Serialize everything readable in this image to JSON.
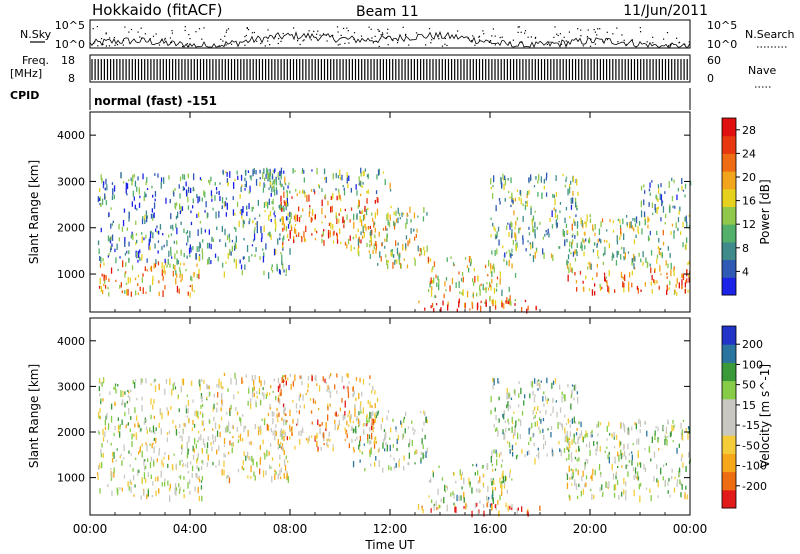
{
  "header": {
    "site": "Hokkaido (fitACF)",
    "beam": "Beam 11",
    "date": "11/Jun/2011"
  },
  "colors": {
    "power_scale": [
      "#1b23e6",
      "#2e59b4",
      "#3f8a8a",
      "#52b06a",
      "#8fc84a",
      "#e6d21e",
      "#f2a51a",
      "#ef6b14",
      "#e8380f",
      "#e01010"
    ],
    "velocity_scale": [
      "#e21a1a",
      "#ee6d12",
      "#f6a81a",
      "#f4cc3a",
      "#c8c8c0",
      "#c8c8c0",
      "#86cc47",
      "#3a9a3a",
      "#2a74a0",
      "#2233c8"
    ]
  },
  "chart_data": [
    {
      "type": "line",
      "panel": "noise",
      "left_label": "N.Sky",
      "right_label": "N.Search",
      "left_ticks": [
        "10^5",
        "10^0"
      ],
      "right_ticks": [
        "10^5",
        "10^0"
      ]
    },
    {
      "type": "bar",
      "panel": "frequency",
      "left_label_line1": "Freq.",
      "left_label_line2": "[MHz]",
      "left_ticks": [
        "18",
        "8"
      ],
      "right_ticks": [
        "60",
        "0"
      ],
      "right_label": "Nave",
      "ylim": [
        8,
        18
      ]
    },
    {
      "type": "table",
      "panel": "cpid",
      "label": "CPID",
      "value": "normal (fast) -151"
    },
    {
      "type": "heatmap",
      "panel": "power",
      "ylabel": "Slant Range [km]",
      "yticks": [
        "4000",
        "3000",
        "2000",
        "1000"
      ],
      "ytick_values": [
        4000,
        3000,
        2000,
        1000
      ],
      "ylim": [
        180,
        4500
      ],
      "xlim": [
        0,
        24
      ],
      "colorbar_label": "Power [dB]",
      "colorbar_ticks": [
        "28",
        "24",
        "20",
        "16",
        "12",
        "8",
        "4"
      ],
      "colorbar_values": [
        28,
        24,
        20,
        16,
        12,
        8,
        4
      ],
      "colorbar_range": [
        0,
        30
      ],
      "scatter_regions": [
        {
          "t": [
            0.2,
            4.5
          ],
          "r": [
            600,
            1300
          ],
          "level": 0.65
        },
        {
          "t": [
            0.3,
            5.0
          ],
          "r": [
            1300,
            3200
          ],
          "level": 0.25
        },
        {
          "t": [
            5.0,
            8.0
          ],
          "r": [
            1000,
            3300
          ],
          "level": 0.3
        },
        {
          "t": [
            7.5,
            11.5
          ],
          "r": [
            1600,
            2800
          ],
          "level": 0.7
        },
        {
          "t": [
            6.0,
            12.0
          ],
          "r": [
            2800,
            3300
          ],
          "level": 0.35
        },
        {
          "t": [
            10.5,
            13.5
          ],
          "r": [
            1200,
            2500
          ],
          "level": 0.5
        },
        {
          "t": [
            13.5,
            17.0
          ],
          "r": [
            400,
            1400
          ],
          "level": 0.55
        },
        {
          "t": [
            13.0,
            18.0
          ],
          "r": [
            250,
            450
          ],
          "level": 0.9
        },
        {
          "t": [
            16.0,
            19.5
          ],
          "r": [
            1400,
            3200
          ],
          "level": 0.35
        },
        {
          "t": [
            19.0,
            24.0
          ],
          "r": [
            600,
            1200
          ],
          "level": 0.75
        },
        {
          "t": [
            19.0,
            24.0
          ],
          "r": [
            1200,
            2300
          ],
          "level": 0.45
        },
        {
          "t": [
            22.0,
            24.0
          ],
          "r": [
            2300,
            3100
          ],
          "level": 0.3
        }
      ]
    },
    {
      "type": "heatmap",
      "panel": "velocity",
      "ylabel": "Slant Range [km]",
      "yticks": [
        "4000",
        "3000",
        "2000",
        "1000"
      ],
      "ytick_values": [
        4000,
        3000,
        2000,
        1000
      ],
      "ylim": [
        180,
        4500
      ],
      "xlim": [
        0,
        24
      ],
      "xlabel": "Time UT",
      "xticks": [
        "00:00",
        "04:00",
        "08:00",
        "12:00",
        "16:00",
        "20:00",
        "00:00"
      ],
      "xtick_values": [
        0,
        4,
        8,
        12,
        16,
        20,
        24
      ],
      "colorbar_label": "Velocity [m s^-1]",
      "colorbar_ticks": [
        "200",
        "100",
        "50",
        "15",
        "-15",
        "-50",
        "-100",
        "-200"
      ],
      "colorbar_values": [
        200,
        100,
        50,
        15,
        -15,
        -50,
        -100,
        -200
      ],
      "scatter_regions": [
        {
          "t": [
            0.2,
            4.5
          ],
          "r": [
            600,
            1300
          ],
          "level": 0.5
        },
        {
          "t": [
            0.3,
            5.0
          ],
          "r": [
            1300,
            3200
          ],
          "level": 0.5
        },
        {
          "t": [
            5.0,
            8.0
          ],
          "r": [
            1000,
            3300
          ],
          "level": 0.45
        },
        {
          "t": [
            7.5,
            11.5
          ],
          "r": [
            1600,
            3300
          ],
          "level": 0.3
        },
        {
          "t": [
            10.5,
            13.5
          ],
          "r": [
            1200,
            2500
          ],
          "level": 0.6
        },
        {
          "t": [
            13.5,
            17.0
          ],
          "r": [
            400,
            1400
          ],
          "level": 0.55
        },
        {
          "t": [
            13.0,
            18.0
          ],
          "r": [
            250,
            450
          ],
          "level": 0.2
        },
        {
          "t": [
            16.0,
            19.5
          ],
          "r": [
            1400,
            3200
          ],
          "level": 0.6
        },
        {
          "t": [
            19.0,
            24.0
          ],
          "r": [
            600,
            1200
          ],
          "level": 0.5
        },
        {
          "t": [
            19.0,
            24.0
          ],
          "r": [
            1200,
            2300
          ],
          "level": 0.55
        }
      ]
    }
  ]
}
